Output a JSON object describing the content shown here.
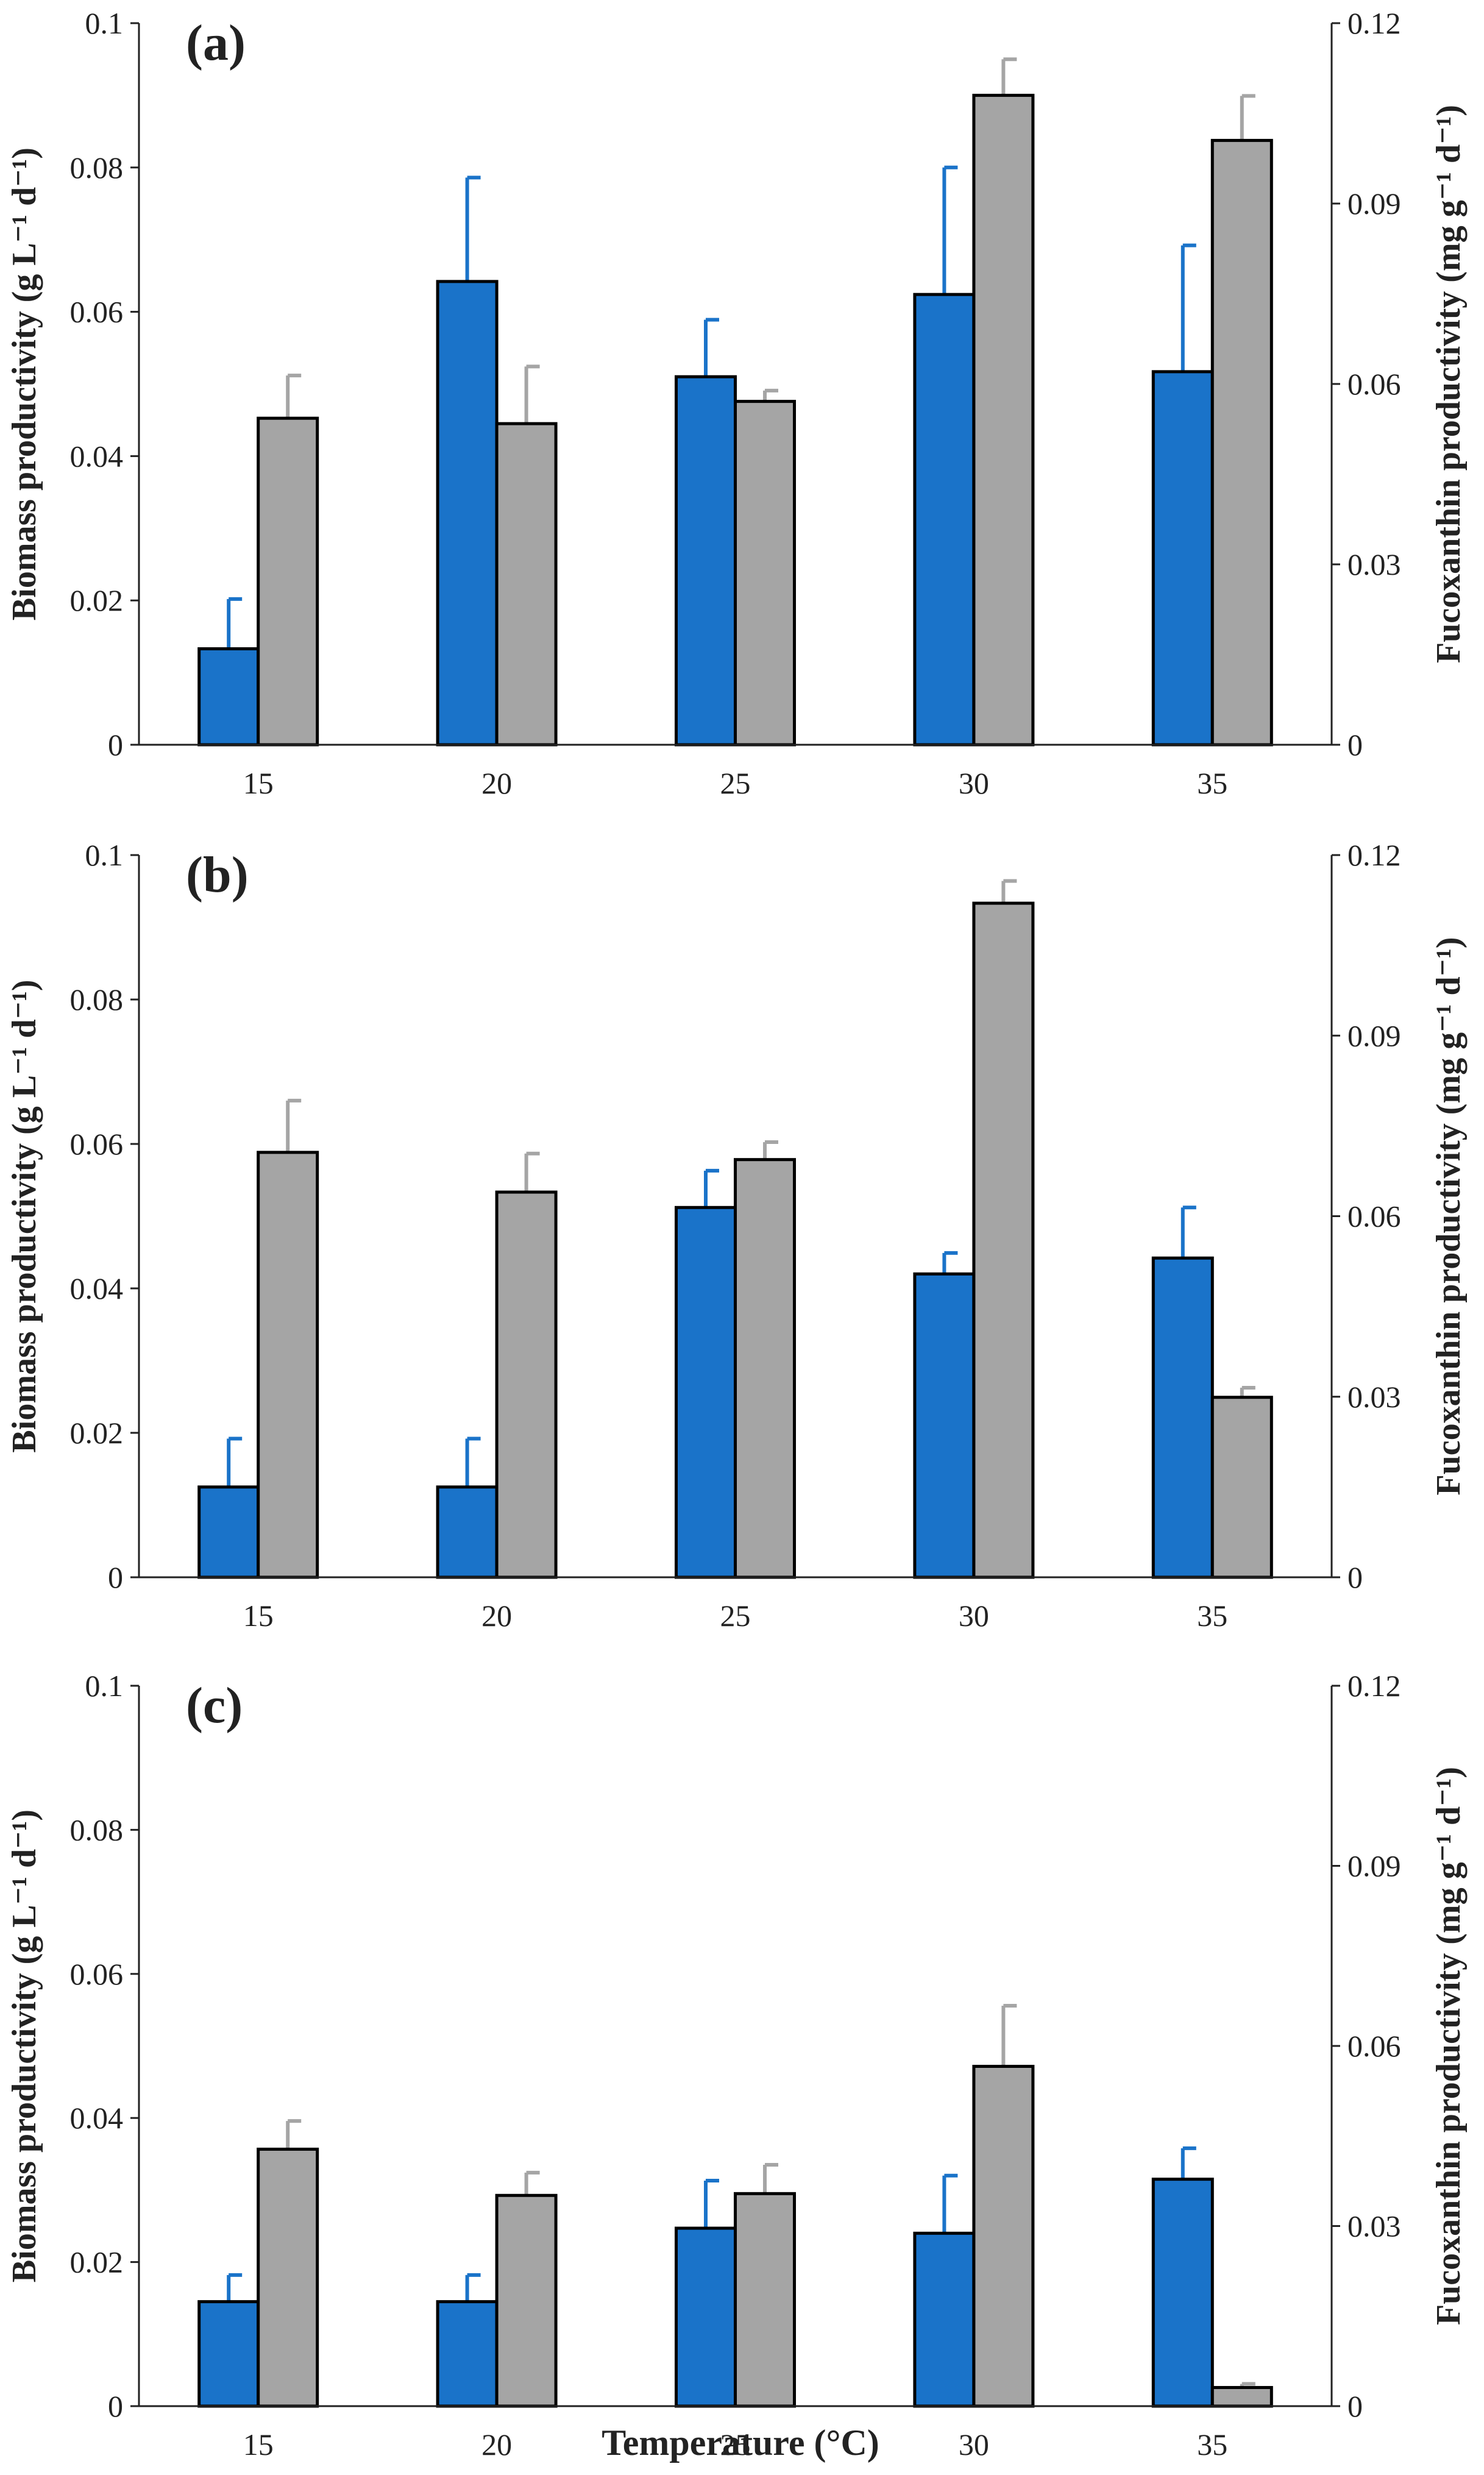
{
  "figure": {
    "xlabel": "Temperature (°C)",
    "left_axis_title": "Biomass productivity (g L⁻¹ d⁻¹)",
    "right_axis_title": "Fucoxanthin productivity (mg g⁻¹ d⁻¹)"
  },
  "colors": {
    "biomass": "#1a73c9",
    "fucoxanthin": "#a5a5a5",
    "axis": "#222222",
    "bar_outline": "#000000"
  },
  "chart_data": [
    {
      "type": "bar",
      "panel": "(a)",
      "categories": [
        "15",
        "20",
        "25",
        "30",
        "35"
      ],
      "xlabel": "Temperature (°C)",
      "ylabel": "Biomass productivity (g L⁻¹ d⁻¹)",
      "ylim": [
        0,
        0.1
      ],
      "yticks": [
        "0",
        "0.02",
        "0.04",
        "0.06",
        "0.08",
        "0.1"
      ],
      "y2label": "Fucoxanthin productivity (mg g⁻¹ d⁻¹)",
      "y2lim": [
        0,
        0.12
      ],
      "y2ticks": [
        "0",
        "0.03",
        "0.06",
        "0.09",
        "0.12"
      ],
      "series": [
        {
          "name": "Biomass productivity",
          "axis": "left",
          "values": [
            0.0133,
            0.0642,
            0.051,
            0.0624,
            0.0517
          ],
          "errors": [
            0.0069,
            0.0144,
            0.0079,
            0.0176,
            0.0175
          ]
        },
        {
          "name": "Fucoxanthin productivity",
          "axis": "right",
          "values": [
            0.0543,
            0.0534,
            0.0571,
            0.108,
            0.1005
          ],
          "errors": [
            0.0071,
            0.0095,
            0.0018,
            0.006,
            0.0074
          ]
        }
      ]
    },
    {
      "type": "bar",
      "panel": "(b)",
      "categories": [
        "15",
        "20",
        "25",
        "30",
        "35"
      ],
      "xlabel": "Temperature (°C)",
      "ylabel": "Biomass productivity (g L⁻¹ d⁻¹)",
      "ylim": [
        0,
        0.1
      ],
      "yticks": [
        "0",
        "0.02",
        "0.04",
        "0.06",
        "0.08",
        "0.1"
      ],
      "y2label": "Fucoxanthin productivity (mg g⁻¹ d⁻¹)",
      "y2lim": [
        0,
        0.12
      ],
      "y2ticks": [
        "0",
        "0.03",
        "0.06",
        "0.09",
        "0.12"
      ],
      "series": [
        {
          "name": "Biomass productivity",
          "axis": "left",
          "values": [
            0.0125,
            0.0125,
            0.0512,
            0.042,
            0.0442
          ],
          "errors": [
            0.0067,
            0.0067,
            0.0051,
            0.0029,
            0.007
          ]
        },
        {
          "name": "Fucoxanthin productivity",
          "axis": "right",
          "values": [
            0.0706,
            0.064,
            0.0694,
            0.112,
            0.0299
          ],
          "errors": [
            0.0086,
            0.0064,
            0.0029,
            0.0037,
            0.0016
          ]
        }
      ]
    },
    {
      "type": "bar",
      "panel": "(c)",
      "categories": [
        "15",
        "20",
        "25",
        "30",
        "35"
      ],
      "xlabel": "Temperature (°C)",
      "ylabel": "Biomass productivity (g L⁻¹ d⁻¹)",
      "ylim": [
        0,
        0.1
      ],
      "yticks": [
        "0",
        "0.02",
        "0.04",
        "0.06",
        "0.08",
        "0.1"
      ],
      "y2label": "Fucoxanthin productivity (mg g⁻¹ d⁻¹)",
      "y2lim": [
        0,
        0.12
      ],
      "y2ticks": [
        "0",
        "0.03",
        "0.06",
        "0.09",
        "0.12"
      ],
      "series": [
        {
          "name": "Biomass productivity",
          "axis": "left",
          "values": [
            0.0145,
            0.0145,
            0.0247,
            0.024,
            0.0315
          ],
          "errors": [
            0.0037,
            0.0037,
            0.0066,
            0.008,
            0.0043
          ]
        },
        {
          "name": "Fucoxanthin productivity",
          "axis": "right",
          "values": [
            0.0428,
            0.0351,
            0.0354,
            0.0566,
            0.0031
          ],
          "errors": [
            0.0047,
            0.0038,
            0.0048,
            0.0101,
            0.0006
          ]
        }
      ]
    }
  ]
}
